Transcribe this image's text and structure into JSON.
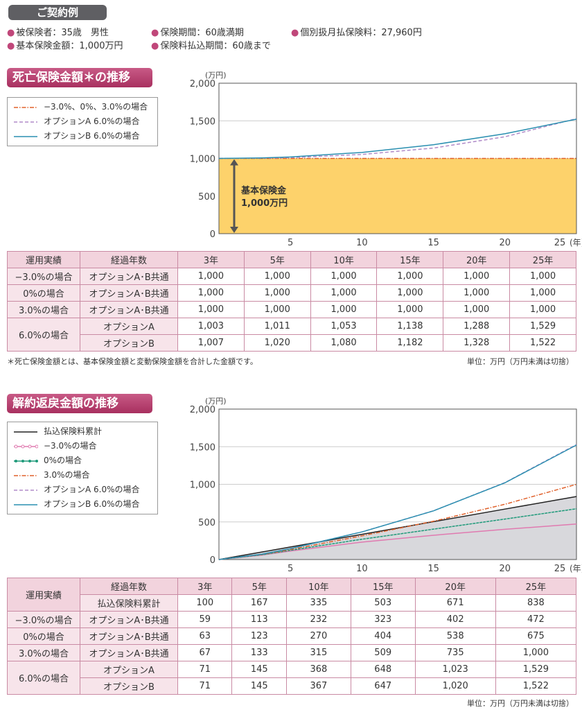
{
  "contract": {
    "title": "ご契約例",
    "items": [
      "被保険者：35歳　男性",
      "保険期間：60歳満期",
      "個別扱月払保険料：27,960円",
      "基本保険金額：1,000万円",
      "保険料払込期間：60歳まで"
    ]
  },
  "colors": {
    "accent": "#b23a6a",
    "header_bg": "#f2d3dd",
    "fill_base": "#fdd26b",
    "fill_gray": "#d8d8dc"
  },
  "chart_data": [
    {
      "type": "line",
      "title": "死亡保険金額＊の推移",
      "ylabel": "(万円)",
      "xlabel": "(年)",
      "ylim": [
        0,
        2000
      ],
      "yticks": [
        "0",
        "500",
        "1,000",
        "1,500",
        "2,000"
      ],
      "xticks": [
        "5",
        "10",
        "15",
        "20",
        "25"
      ],
      "xlim": [
        0,
        25
      ],
      "grid": true,
      "legend": "top-left",
      "x": [
        3,
        5,
        10,
        15,
        20,
        25
      ],
      "series": [
        {
          "name": "−3.0%、0%、3.0%の場合",
          "values": [
            1000,
            1000,
            1000,
            1000,
            1000,
            1000
          ],
          "color": "#e0602a",
          "style": "dashdot"
        },
        {
          "name": "オプションA 6.0%の場合",
          "values": [
            1003,
            1011,
            1053,
            1138,
            1288,
            1529
          ],
          "color": "#b08ac8",
          "style": "dashed"
        },
        {
          "name": "オプションB 6.0%の場合",
          "values": [
            1007,
            1020,
            1080,
            1182,
            1328,
            1522
          ],
          "color": "#2a8fb0",
          "style": "solid"
        }
      ],
      "annotation": [
        "基本保険金",
        "1,000万円"
      ]
    },
    {
      "type": "line",
      "title": "解約返戻金額の推移",
      "ylabel": "(万円)",
      "xlabel": "(年)",
      "ylim": [
        0,
        2000
      ],
      "yticks": [
        "0",
        "500",
        "1,000",
        "1,500",
        "2,000"
      ],
      "xticks": [
        "5",
        "10",
        "15",
        "20",
        "25"
      ],
      "xlim": [
        0,
        25
      ],
      "grid": true,
      "legend": "top-left",
      "x": [
        3,
        5,
        10,
        15,
        20,
        25
      ],
      "series": [
        {
          "name": "払込保険料累計",
          "values": [
            100,
            167,
            335,
            503,
            671,
            838
          ],
          "color": "#222222",
          "style": "solid"
        },
        {
          "name": "−3.0%の場合",
          "values": [
            59,
            113,
            232,
            323,
            402,
            472
          ],
          "color": "#e07ab0",
          "style": "circle"
        },
        {
          "name": "0%の場合",
          "values": [
            63,
            123,
            270,
            404,
            538,
            675
          ],
          "color": "#1f9a7a",
          "style": "dot"
        },
        {
          "name": "3.0%の場合",
          "values": [
            67,
            133,
            315,
            509,
            735,
            1000
          ],
          "color": "#e0602a",
          "style": "dashdot"
        },
        {
          "name": "オプションA 6.0%の場合",
          "values": [
            71,
            145,
            368,
            648,
            1023,
            1529
          ],
          "color": "#b08ac8",
          "style": "dashed"
        },
        {
          "name": "オプションB 6.0%の場合",
          "values": [
            71,
            145,
            367,
            647,
            1020,
            1522
          ],
          "color": "#2a8fb0",
          "style": "solid"
        }
      ]
    }
  ],
  "table1": {
    "h1": "運用実績",
    "h2": "経過年数",
    "years": [
      "3年",
      "5年",
      "10年",
      "15年",
      "20年",
      "25年"
    ],
    "rows": [
      {
        "a": "−3.0%の場合",
        "b": "オプションA･B共通",
        "v": [
          "1,000",
          "1,000",
          "1,000",
          "1,000",
          "1,000",
          "1,000"
        ]
      },
      {
        "a": "0%の場合",
        "b": "オプションA･B共通",
        "v": [
          "1,000",
          "1,000",
          "1,000",
          "1,000",
          "1,000",
          "1,000"
        ]
      },
      {
        "a": "3.0%の場合",
        "b": "オプションA･B共通",
        "v": [
          "1,000",
          "1,000",
          "1,000",
          "1,000",
          "1,000",
          "1,000"
        ]
      },
      {
        "a": "6.0%の場合",
        "b": "オプションA",
        "v": [
          "1,003",
          "1,011",
          "1,053",
          "1,138",
          "1,288",
          "1,529"
        ]
      },
      {
        "a": "",
        "b": "オプションB",
        "v": [
          "1,007",
          "1,020",
          "1,080",
          "1,182",
          "1,328",
          "1,522"
        ]
      }
    ],
    "note": "＊死亡保険金額とは、基本保険金額と変動保険金額を合計した金額です。",
    "unit": "単位：万円（万円未満は切捨）"
  },
  "table2": {
    "h1": "運用実績",
    "h2": "経過年数",
    "years": [
      "3年",
      "5年",
      "10年",
      "15年",
      "20年",
      "25年"
    ],
    "paid_label": "払込保険料累計",
    "paid": [
      "100",
      "167",
      "335",
      "503",
      "671",
      "838"
    ],
    "rows": [
      {
        "a": "−3.0%の場合",
        "b": "オプションA･B共通",
        "v": [
          "59",
          "113",
          "232",
          "323",
          "402",
          "472"
        ]
      },
      {
        "a": "0%の場合",
        "b": "オプションA･B共通",
        "v": [
          "63",
          "123",
          "270",
          "404",
          "538",
          "675"
        ]
      },
      {
        "a": "3.0%の場合",
        "b": "オプションA･B共通",
        "v": [
          "67",
          "133",
          "315",
          "509",
          "735",
          "1,000"
        ]
      },
      {
        "a": "6.0%の場合",
        "b": "オプションA",
        "v": [
          "71",
          "145",
          "368",
          "648",
          "1,023",
          "1,529"
        ]
      },
      {
        "a": "",
        "b": "オプションB",
        "v": [
          "71",
          "145",
          "367",
          "647",
          "1,020",
          "1,522"
        ]
      }
    ],
    "unit": "単位：万円（万円未満は切捨）"
  }
}
